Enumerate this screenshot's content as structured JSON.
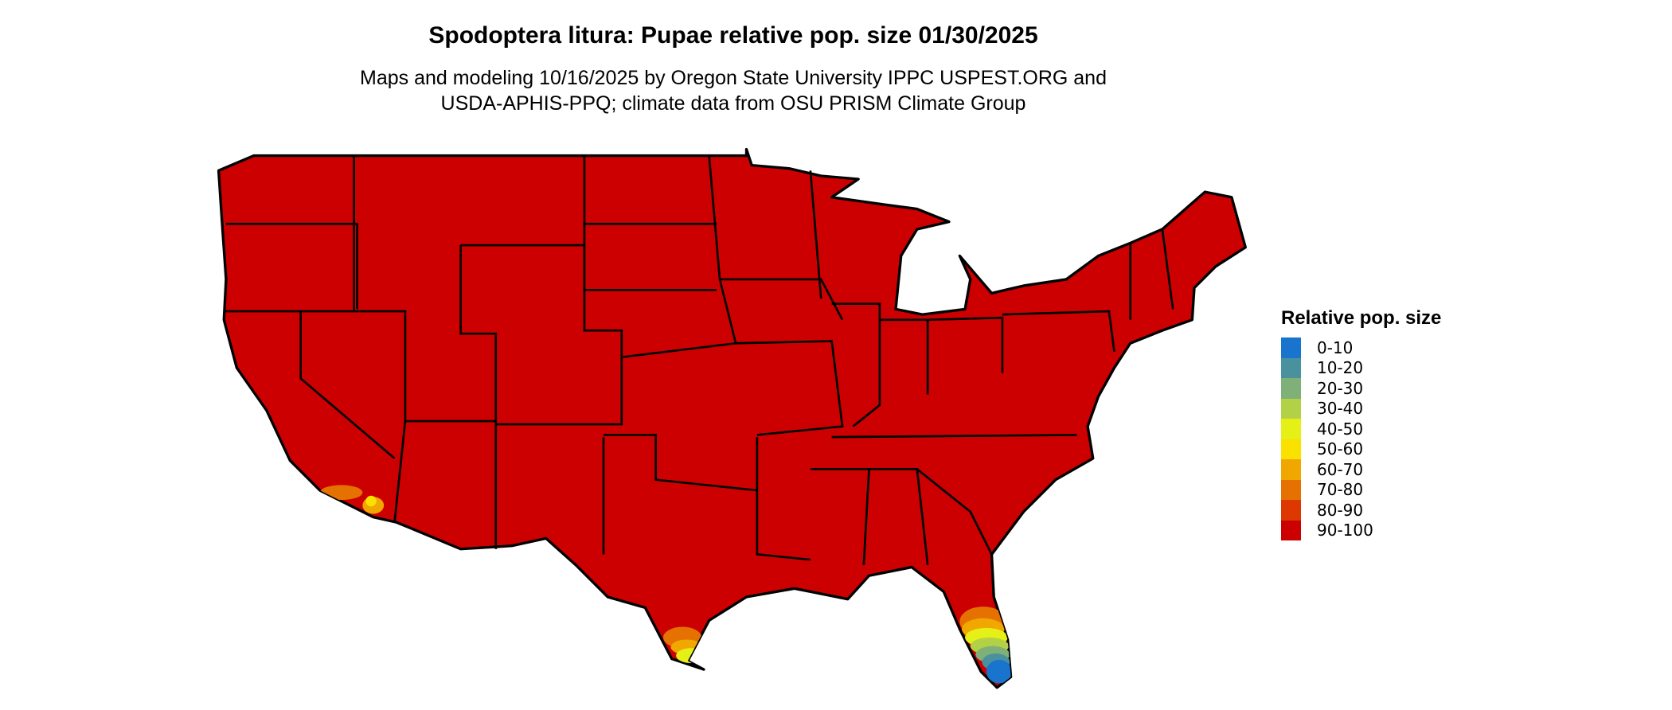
{
  "title": "Spodoptera litura: Pupae relative pop. size 01/30/2025",
  "subtitle_line1": "Maps and modeling 10/16/2025 by Oregon State University IPPC USPEST.ORG and",
  "subtitle_line2": "USDA-APHIS-PPQ; climate data from OSU PRISM Climate Group",
  "legend": {
    "title": "Relative pop. size",
    "items": [
      {
        "label": "0-10",
        "color": "#1874CD"
      },
      {
        "label": "10-20",
        "color": "#4A919E"
      },
      {
        "label": "20-30",
        "color": "#7FB077"
      },
      {
        "label": "30-40",
        "color": "#B3D147"
      },
      {
        "label": "40-50",
        "color": "#E5F016"
      },
      {
        "label": "50-60",
        "color": "#FAE100"
      },
      {
        "label": "60-70",
        "color": "#F0A800"
      },
      {
        "label": "70-80",
        "color": "#E57200"
      },
      {
        "label": "80-90",
        "color": "#DC3800"
      },
      {
        "label": "90-100",
        "color": "#CC0000"
      }
    ]
  },
  "map": {
    "region": "Contiguous United States",
    "dominant_class": "90-100"
  }
}
